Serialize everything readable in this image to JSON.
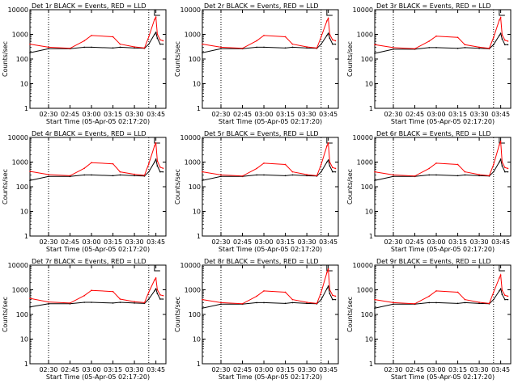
{
  "chart_data": [
    {
      "type": "line",
      "title": "Det 1r BLACK = Events, RED = LLD",
      "ylabel": "Counts/sec",
      "xlabel": "Start Time (05-Apr-05 02:17:20)",
      "x_ticks": [
        "02:30",
        "02:45",
        "03:00",
        "03:15",
        "03:30",
        "03:45"
      ],
      "y_ticks": [
        "1",
        "10",
        "100",
        "1000",
        "10000"
      ],
      "yscale": "log",
      "ylim": [
        1,
        10000
      ],
      "x": [
        "02:17",
        "02:30",
        "02:45",
        "02:55",
        "03:00",
        "03:15",
        "03:20",
        "03:30",
        "03:37",
        "03:40",
        "03:44",
        "03:45",
        "03:46",
        "03:48",
        "03:50"
      ],
      "series": [
        {
          "name": "BLACK = Events",
          "color": "#000000",
          "values": [
            180,
            260,
            260,
            300,
            300,
            280,
            300,
            280,
            270,
            400,
            1000,
            1200,
            700,
            400,
            400
          ]
        },
        {
          "name": "RED = LLD",
          "color": "#ff0000",
          "values": [
            400,
            300,
            270,
            550,
            900,
            800,
            400,
            310,
            280,
            800,
            4000,
            5000,
            1000,
            600,
            550
          ]
        }
      ]
    },
    {
      "type": "line",
      "title": "Det 2r BLACK = Events, RED = LLD",
      "ylabel": "Counts/sec",
      "xlabel": "Start Time (05-Apr-05 02:17:20)",
      "x_ticks": [
        "02:30",
        "02:45",
        "03:00",
        "03:15",
        "03:30",
        "03:45"
      ],
      "y_ticks": [
        "1",
        "10",
        "100",
        "1000",
        "10000"
      ],
      "yscale": "log",
      "ylim": [
        1,
        10000
      ],
      "x": [
        "02:17",
        "02:30",
        "02:45",
        "02:55",
        "03:00",
        "03:15",
        "03:20",
        "03:30",
        "03:37",
        "03:40",
        "03:44",
        "03:45",
        "03:46",
        "03:48",
        "03:50"
      ],
      "series": [
        {
          "name": "BLACK = Events",
          "color": "#000000",
          "values": [
            180,
            260,
            260,
            300,
            300,
            280,
            300,
            280,
            270,
            400,
            900,
            1100,
            700,
            400,
            400
          ]
        },
        {
          "name": "RED = LLD",
          "color": "#ff0000",
          "values": [
            400,
            300,
            270,
            550,
            900,
            800,
            400,
            310,
            280,
            800,
            3500,
            4500,
            1000,
            600,
            550
          ]
        }
      ]
    },
    {
      "type": "line",
      "title": "Det 3r BLACK = Events, RED = LLD",
      "ylabel": "Counts/sec",
      "xlabel": "Start Time (05-Apr-05 02:17:20)",
      "x_ticks": [
        "02:30",
        "02:45",
        "03:00",
        "03:15",
        "03:30",
        "03:45"
      ],
      "y_ticks": [
        "1",
        "10",
        "100",
        "1000",
        "10000"
      ],
      "yscale": "log",
      "ylim": [
        1,
        10000
      ],
      "x": [
        "02:17",
        "02:30",
        "02:45",
        "02:55",
        "03:00",
        "03:15",
        "03:20",
        "03:30",
        "03:37",
        "03:40",
        "03:44",
        "03:45",
        "03:46",
        "03:48",
        "03:50"
      ],
      "series": [
        {
          "name": "BLACK = Events",
          "color": "#000000",
          "values": [
            170,
            250,
            250,
            290,
            290,
            270,
            290,
            270,
            260,
            380,
            900,
            1100,
            650,
            380,
            380
          ]
        },
        {
          "name": "RED = LLD",
          "color": "#ff0000",
          "values": [
            380,
            290,
            260,
            530,
            850,
            750,
            380,
            300,
            270,
            750,
            3800,
            4800,
            950,
            580,
            530
          ]
        }
      ]
    },
    {
      "type": "line",
      "title": "Det 4r BLACK = Events, RED = LLD",
      "ylabel": "Counts/sec",
      "xlabel": "Start Time (05-Apr-05 02:17:20)",
      "x_ticks": [
        "02:30",
        "02:45",
        "03:00",
        "03:15",
        "03:30",
        "03:45"
      ],
      "y_ticks": [
        "1",
        "10",
        "100",
        "1000",
        "10000"
      ],
      "yscale": "log",
      "ylim": [
        1,
        10000
      ],
      "x": [
        "02:17",
        "02:30",
        "02:45",
        "02:55",
        "03:00",
        "03:15",
        "03:20",
        "03:30",
        "03:37",
        "03:40",
        "03:44",
        "03:45",
        "03:46",
        "03:48",
        "03:50"
      ],
      "series": [
        {
          "name": "BLACK = Events",
          "color": "#000000",
          "values": [
            180,
            260,
            260,
            300,
            300,
            280,
            300,
            280,
            270,
            400,
            1000,
            1300,
            700,
            400,
            400
          ]
        },
        {
          "name": "RED = LLD",
          "color": "#ff0000",
          "values": [
            420,
            310,
            280,
            560,
            950,
            850,
            400,
            320,
            290,
            850,
            4500,
            6000,
            1100,
            620,
            560
          ]
        }
      ]
    },
    {
      "type": "line",
      "title": "Det 5r BLACK = Events, RED = LLD",
      "ylabel": "Counts/sec",
      "xlabel": "Start Time (05-Apr-05 02:17:20)",
      "x_ticks": [
        "02:30",
        "02:45",
        "03:00",
        "03:15",
        "03:30",
        "03:45"
      ],
      "y_ticks": [
        "1",
        "10",
        "100",
        "1000",
        "10000"
      ],
      "yscale": "log",
      "ylim": [
        1,
        10000
      ],
      "x": [
        "02:17",
        "02:30",
        "02:45",
        "02:55",
        "03:00",
        "03:15",
        "03:20",
        "03:30",
        "03:37",
        "03:40",
        "03:44",
        "03:45",
        "03:46",
        "03:48",
        "03:50"
      ],
      "series": [
        {
          "name": "BLACK = Events",
          "color": "#000000",
          "values": [
            180,
            260,
            260,
            300,
            300,
            280,
            300,
            280,
            270,
            400,
            1000,
            1200,
            700,
            400,
            400
          ]
        },
        {
          "name": "RED = LLD",
          "color": "#ff0000",
          "values": [
            400,
            300,
            270,
            550,
            900,
            800,
            400,
            310,
            280,
            800,
            4500,
            6000,
            1000,
            600,
            550
          ]
        }
      ]
    },
    {
      "type": "line",
      "title": "Det 6r BLACK = Events, RED = LLD",
      "ylabel": "Counts/sec",
      "xlabel": "Start Time (05-Apr-05 02:17:20)",
      "x_ticks": [
        "02:30",
        "02:45",
        "03:00",
        "03:15",
        "03:30",
        "03:45"
      ],
      "y_ticks": [
        "1",
        "10",
        "100",
        "1000",
        "10000"
      ],
      "yscale": "log",
      "ylim": [
        1,
        10000
      ],
      "x": [
        "02:17",
        "02:30",
        "02:45",
        "02:55",
        "03:00",
        "03:15",
        "03:20",
        "03:30",
        "03:37",
        "03:40",
        "03:44",
        "03:45",
        "03:46",
        "03:48",
        "03:50"
      ],
      "series": [
        {
          "name": "BLACK = Events",
          "color": "#000000",
          "values": [
            180,
            260,
            260,
            300,
            300,
            280,
            300,
            280,
            270,
            400,
            1000,
            1300,
            700,
            400,
            400
          ]
        },
        {
          "name": "RED = LLD",
          "color": "#ff0000",
          "values": [
            400,
            300,
            270,
            550,
            900,
            800,
            400,
            310,
            280,
            800,
            5000,
            7000,
            1000,
            600,
            550
          ]
        }
      ]
    },
    {
      "type": "line",
      "title": "Det 7r BLACK = Events, RED = LLD",
      "ylabel": "Counts/sec",
      "xlabel": "Start Time (05-Apr-05 02:17:20)",
      "x_ticks": [
        "02:30",
        "02:45",
        "03:00",
        "03:15",
        "03:30",
        "03:45"
      ],
      "y_ticks": [
        "1",
        "10",
        "100",
        "1000",
        "10000"
      ],
      "yscale": "log",
      "ylim": [
        1,
        10000
      ],
      "x": [
        "02:17",
        "02:30",
        "02:45",
        "02:55",
        "03:00",
        "03:15",
        "03:20",
        "03:30",
        "03:37",
        "03:40",
        "03:44",
        "03:45",
        "03:46",
        "03:48",
        "03:50"
      ],
      "series": [
        {
          "name": "BLACK = Events",
          "color": "#000000",
          "values": [
            200,
            270,
            270,
            310,
            310,
            290,
            310,
            290,
            280,
            420,
            900,
            1100,
            700,
            420,
            420
          ]
        },
        {
          "name": "RED = LLD",
          "color": "#ff0000",
          "values": [
            450,
            320,
            290,
            580,
            950,
            850,
            420,
            330,
            300,
            800,
            2500,
            3000,
            1000,
            620,
            580
          ]
        }
      ]
    },
    {
      "type": "line",
      "title": "Det 8r BLACK = Events, RED = LLD",
      "ylabel": "Counts/sec",
      "xlabel": "Start Time (05-Apr-05 02:17:20)",
      "x_ticks": [
        "02:30",
        "02:45",
        "03:00",
        "03:15",
        "03:30",
        "03:45"
      ],
      "y_ticks": [
        "1",
        "10",
        "100",
        "1000",
        "10000"
      ],
      "yscale": "log",
      "ylim": [
        1,
        10000
      ],
      "x": [
        "02:17",
        "02:30",
        "02:45",
        "02:55",
        "03:00",
        "03:15",
        "03:20",
        "03:30",
        "03:37",
        "03:40",
        "03:44",
        "03:45",
        "03:46",
        "03:48",
        "03:50"
      ],
      "series": [
        {
          "name": "BLACK = Events",
          "color": "#000000",
          "values": [
            180,
            260,
            260,
            300,
            300,
            280,
            300,
            280,
            270,
            400,
            1100,
            1400,
            700,
            400,
            400
          ]
        },
        {
          "name": "RED = LLD",
          "color": "#ff0000",
          "values": [
            400,
            300,
            270,
            550,
            900,
            800,
            400,
            310,
            280,
            800,
            5000,
            7000,
            1000,
            600,
            550
          ]
        }
      ]
    },
    {
      "type": "line",
      "title": "Det 9r BLACK = Events, RED = LLD",
      "ylabel": "Counts/sec",
      "xlabel": "Start Time (05-Apr-05 02:17:20)",
      "x_ticks": [
        "02:30",
        "02:45",
        "03:00",
        "03:15",
        "03:30",
        "03:45"
      ],
      "y_ticks": [
        "1",
        "10",
        "100",
        "1000",
        "10000"
      ],
      "yscale": "log",
      "ylim": [
        1,
        10000
      ],
      "x": [
        "02:17",
        "02:30",
        "02:45",
        "02:55",
        "03:00",
        "03:15",
        "03:20",
        "03:30",
        "03:37",
        "03:40",
        "03:44",
        "03:45",
        "03:46",
        "03:48",
        "03:50"
      ],
      "series": [
        {
          "name": "BLACK = Events",
          "color": "#000000",
          "values": [
            180,
            260,
            260,
            300,
            300,
            280,
            300,
            280,
            270,
            400,
            900,
            1100,
            650,
            400,
            400
          ]
        },
        {
          "name": "RED = LLD",
          "color": "#ff0000",
          "values": [
            400,
            300,
            270,
            550,
            900,
            800,
            400,
            310,
            280,
            800,
            3000,
            4000,
            950,
            600,
            550
          ]
        }
      ]
    }
  ]
}
